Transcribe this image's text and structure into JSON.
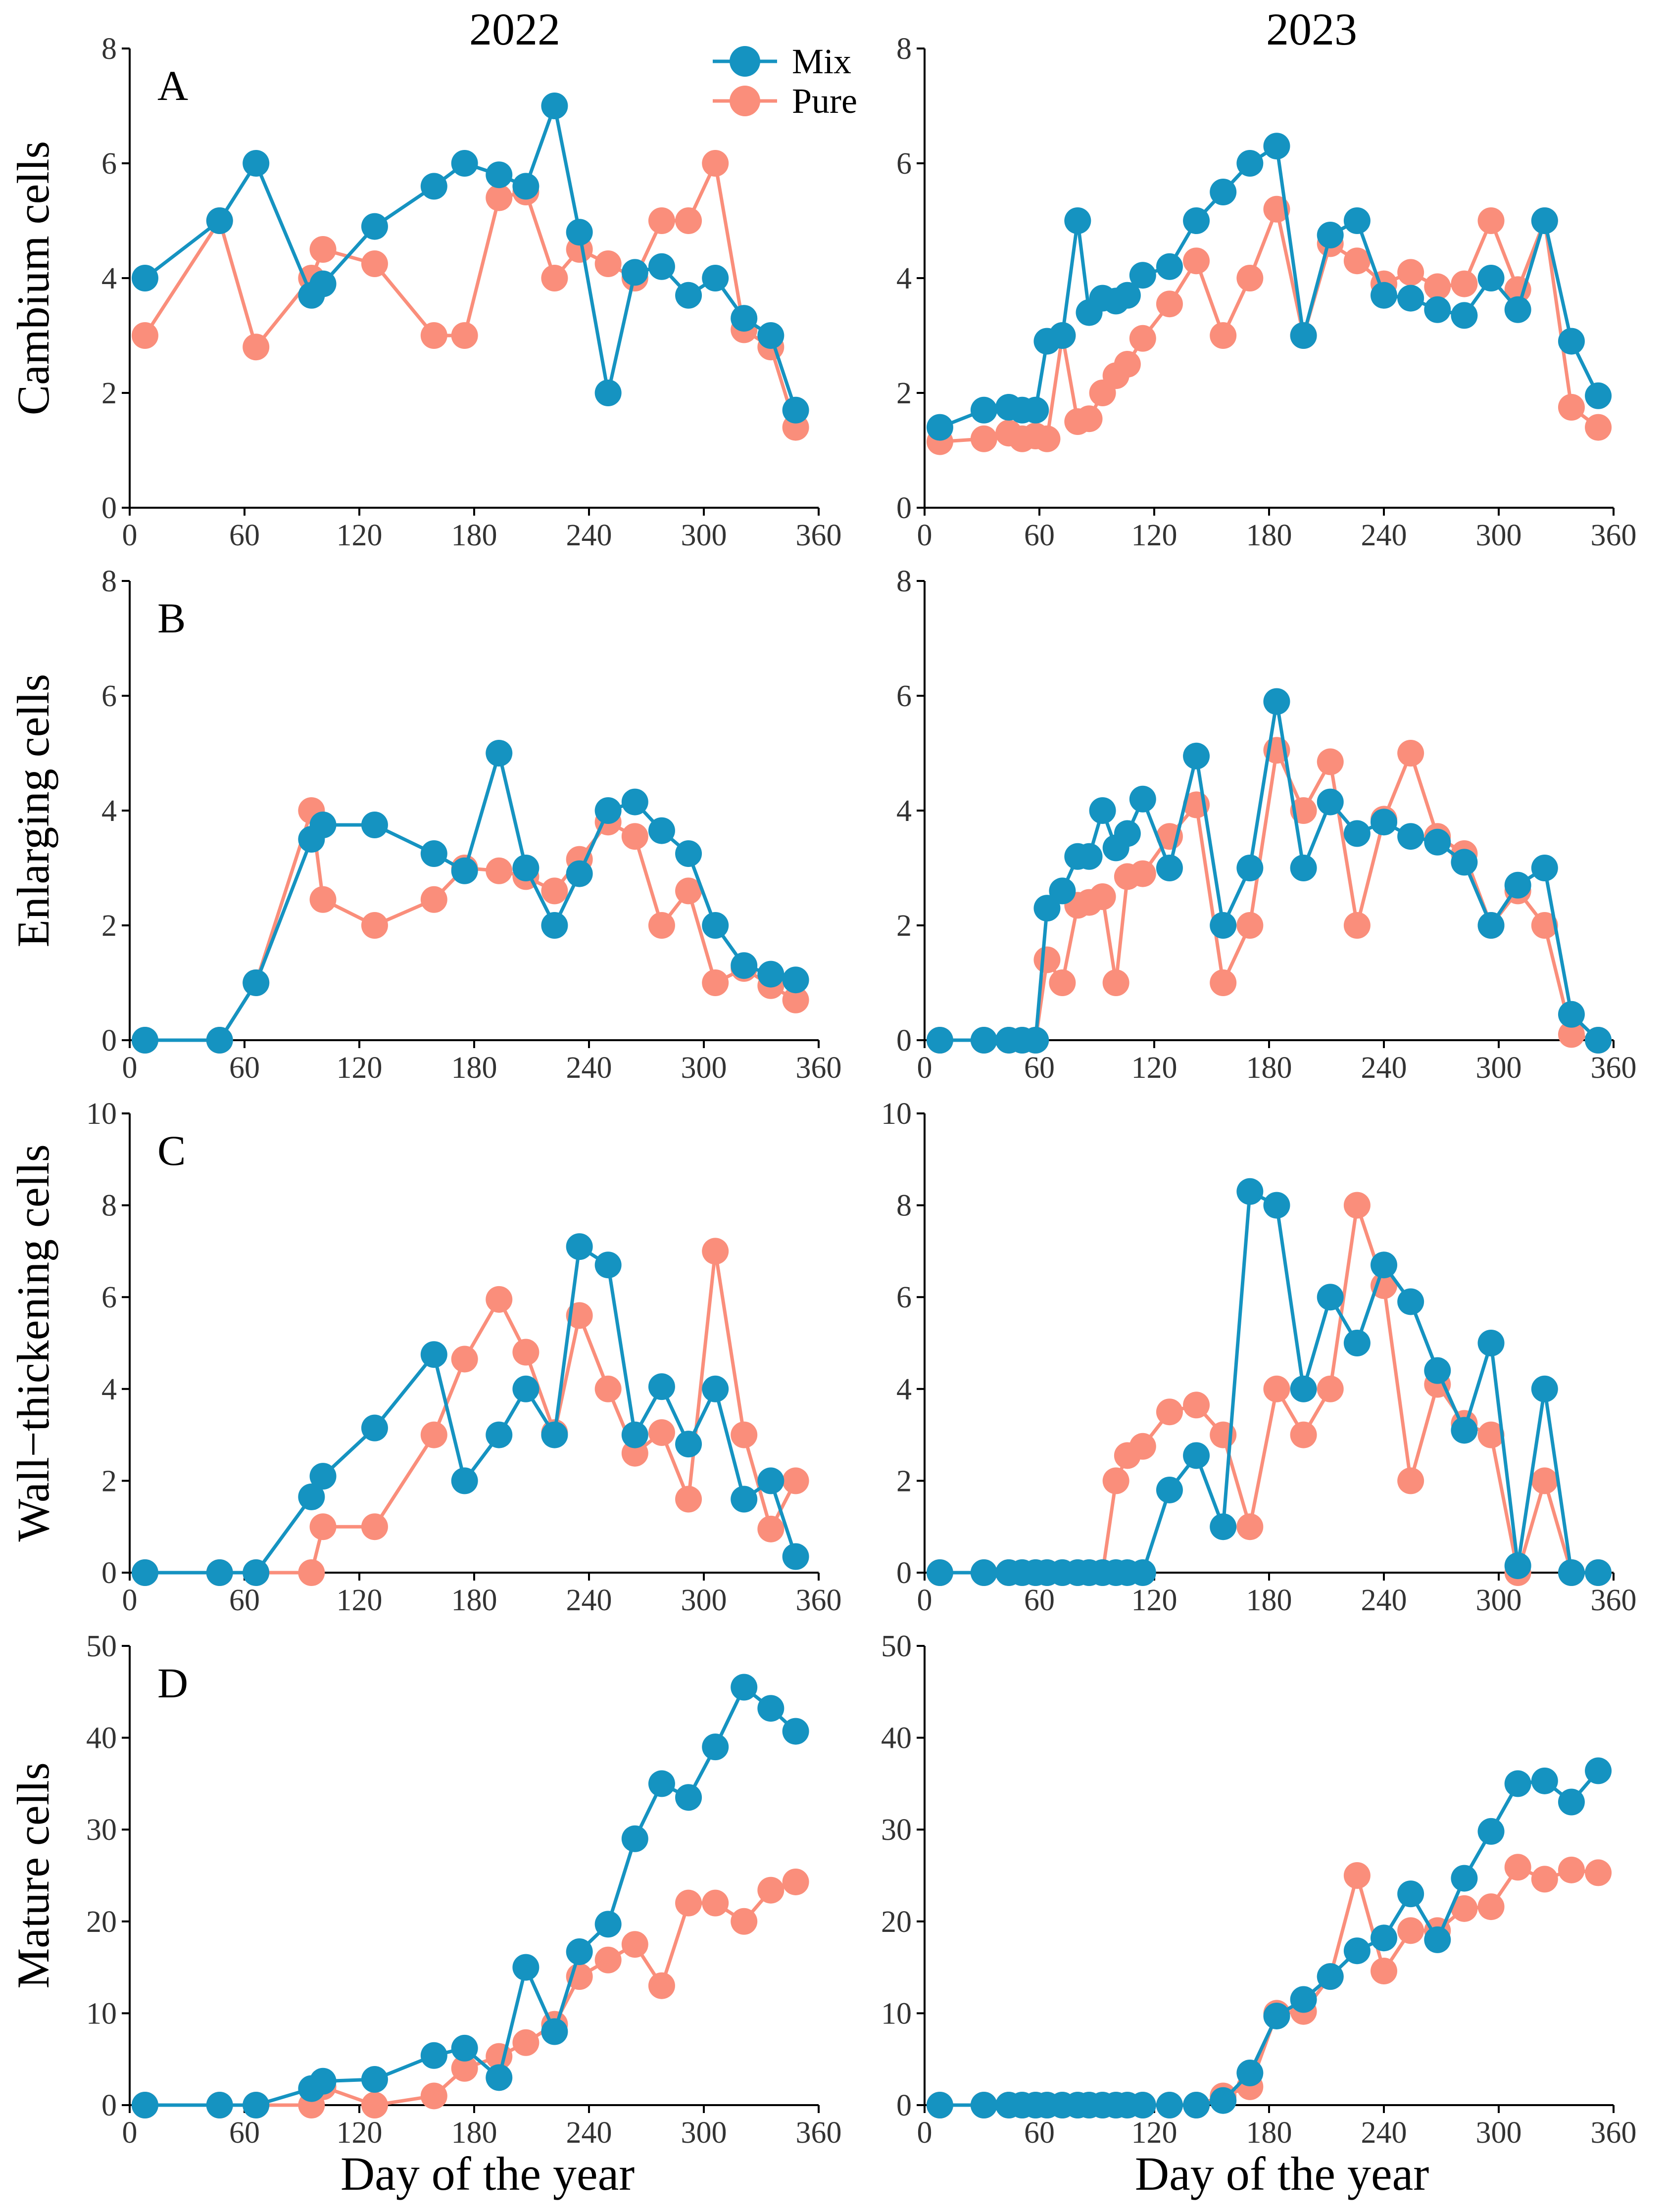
{
  "colors": {
    "Mix": "#1593c1",
    "Pure": "#fa8e7b"
  },
  "column_titles": [
    "2022",
    "2023"
  ],
  "panel_labels": [
    "A",
    "B",
    "C",
    "D"
  ],
  "legend": {
    "Mix": "Mix",
    "Pure": "Pure"
  },
  "x_axis_label": "Day of the year",
  "chart_data": [
    {
      "id": "A-2022",
      "type": "line",
      "title": "2022",
      "panel": "A",
      "xlabel": "",
      "ylabel": "Cambium cells",
      "xlim": [
        0,
        360
      ],
      "ylim": [
        0,
        8
      ],
      "xticks": [
        0,
        60,
        120,
        180,
        240,
        300,
        360
      ],
      "yticks": [
        0,
        2,
        4,
        6,
        8
      ],
      "series": [
        {
          "name": "Mix",
          "x": [
            8,
            47,
            66,
            95,
            101,
            128,
            159,
            175,
            193,
            207,
            222,
            235,
            250,
            264,
            278,
            292,
            306,
            321,
            335,
            348
          ],
          "y": [
            4.0,
            5.0,
            6.0,
            3.7,
            3.9,
            4.9,
            5.6,
            6.0,
            5.8,
            5.6,
            7.0,
            4.8,
            2.0,
            4.1,
            4.2,
            3.7,
            4.0,
            3.3,
            3.0,
            1.7
          ]
        },
        {
          "name": "Pure",
          "x": [
            8,
            47,
            66,
            95,
            101,
            128,
            159,
            175,
            193,
            207,
            222,
            235,
            250,
            264,
            278,
            292,
            306,
            321,
            335,
            348
          ],
          "y": [
            3.0,
            5.0,
            2.8,
            4.0,
            4.5,
            4.25,
            3.0,
            3.0,
            5.4,
            5.5,
            4.0,
            4.5,
            4.25,
            4.0,
            5.0,
            5.0,
            6.0,
            3.1,
            2.8,
            1.4
          ]
        }
      ]
    },
    {
      "id": "A-2023",
      "type": "line",
      "title": "2023",
      "panel": "A",
      "xlabel": "",
      "ylabel": "",
      "xlim": [
        0,
        360
      ],
      "ylim": [
        0,
        8
      ],
      "xticks": [
        0,
        60,
        120,
        180,
        240,
        300,
        360
      ],
      "yticks": [
        0,
        2,
        4,
        6,
        8
      ],
      "series": [
        {
          "name": "Mix",
          "x": [
            8,
            31,
            44,
            51,
            58,
            64,
            72,
            80,
            86,
            93,
            100,
            106,
            114,
            128,
            142,
            156,
            170,
            184,
            198,
            212,
            226,
            240,
            254,
            268,
            282,
            296,
            310,
            324,
            338,
            352
          ],
          "y": [
            1.4,
            1.7,
            1.75,
            1.7,
            1.7,
            2.9,
            3.0,
            5.0,
            3.4,
            3.65,
            3.6,
            3.7,
            4.05,
            4.2,
            5.0,
            5.5,
            6.0,
            6.3,
            3.0,
            4.75,
            5.0,
            3.7,
            3.65,
            3.45,
            3.35,
            4.0,
            3.45,
            5.0,
            2.9,
            1.95
          ]
        },
        {
          "name": "Pure",
          "x": [
            8,
            31,
            44,
            51,
            58,
            64,
            72,
            80,
            86,
            93,
            100,
            106,
            114,
            128,
            142,
            156,
            170,
            184,
            198,
            212,
            226,
            240,
            254,
            268,
            282,
            296,
            310,
            324,
            338,
            352
          ],
          "y": [
            1.15,
            1.2,
            1.3,
            1.2,
            1.25,
            1.2,
            3.0,
            1.5,
            1.55,
            2.0,
            2.3,
            2.5,
            2.95,
            3.55,
            4.3,
            3.0,
            4.0,
            5.2,
            3.0,
            4.6,
            4.3,
            3.9,
            4.1,
            3.85,
            3.9,
            5.0,
            3.8,
            5.0,
            1.75,
            1.4
          ]
        }
      ]
    },
    {
      "id": "B-2022",
      "type": "line",
      "title": "",
      "panel": "B",
      "xlabel": "",
      "ylabel": "Enlarging cells",
      "xlim": [
        0,
        360
      ],
      "ylim": [
        0,
        8
      ],
      "xticks": [
        0,
        60,
        120,
        180,
        240,
        300,
        360
      ],
      "yticks": [
        0,
        2,
        4,
        6,
        8
      ],
      "series": [
        {
          "name": "Mix",
          "x": [
            8,
            47,
            66,
            95,
            101,
            128,
            159,
            175,
            193,
            207,
            222,
            235,
            250,
            264,
            278,
            292,
            306,
            321,
            335,
            348
          ],
          "y": [
            0,
            0,
            1.0,
            3.5,
            3.75,
            3.75,
            3.25,
            2.95,
            5.0,
            3.0,
            2.0,
            2.9,
            4.0,
            4.15,
            3.65,
            3.25,
            2.0,
            1.3,
            1.15,
            1.05
          ]
        },
        {
          "name": "Pure",
          "x": [
            8,
            47,
            66,
            95,
            101,
            128,
            159,
            175,
            193,
            207,
            222,
            235,
            250,
            264,
            278,
            292,
            306,
            321,
            335,
            348
          ],
          "y": [
            0,
            0,
            1.0,
            4.0,
            2.45,
            2.0,
            2.45,
            3.0,
            2.95,
            2.85,
            2.6,
            3.15,
            3.8,
            3.55,
            2.0,
            2.6,
            1.0,
            1.25,
            0.95,
            0.7
          ]
        }
      ]
    },
    {
      "id": "B-2023",
      "type": "line",
      "title": "",
      "panel": "B",
      "xlabel": "",
      "ylabel": "",
      "xlim": [
        0,
        360
      ],
      "ylim": [
        0,
        8
      ],
      "xticks": [
        0,
        60,
        120,
        180,
        240,
        300,
        360
      ],
      "yticks": [
        0,
        2,
        4,
        6,
        8
      ],
      "series": [
        {
          "name": "Mix",
          "x": [
            8,
            31,
            44,
            51,
            58,
            64,
            72,
            80,
            86,
            93,
            100,
            106,
            114,
            128,
            142,
            156,
            170,
            184,
            198,
            212,
            226,
            240,
            254,
            268,
            282,
            296,
            310,
            324,
            338,
            352
          ],
          "y": [
            0,
            0,
            0,
            0,
            0,
            2.3,
            2.6,
            3.2,
            3.2,
            4.0,
            3.35,
            3.6,
            4.2,
            3.0,
            4.95,
            2.0,
            3.0,
            5.9,
            3.0,
            4.15,
            3.6,
            3.8,
            3.55,
            3.45,
            3.1,
            2.0,
            2.7,
            3.0,
            0.45,
            0
          ]
        },
        {
          "name": "Pure",
          "x": [
            8,
            31,
            44,
            51,
            58,
            64,
            72,
            80,
            86,
            93,
            100,
            106,
            114,
            128,
            142,
            156,
            170,
            184,
            198,
            212,
            226,
            240,
            254,
            268,
            282,
            296,
            310,
            324,
            338,
            352
          ],
          "y": [
            0,
            0,
            0,
            0,
            0,
            1.4,
            1.0,
            2.35,
            2.4,
            2.5,
            1.0,
            2.85,
            2.9,
            3.55,
            4.1,
            1.0,
            2.0,
            5.05,
            4.0,
            4.85,
            2.0,
            3.85,
            5.0,
            3.55,
            3.25,
            2.0,
            2.6,
            2.0,
            0.1,
            0
          ]
        }
      ]
    },
    {
      "id": "C-2022",
      "type": "line",
      "title": "",
      "panel": "C",
      "xlabel": "",
      "ylabel": "Wall−thickening cells",
      "xlim": [
        0,
        360
      ],
      "ylim": [
        0,
        10
      ],
      "xticks": [
        0,
        60,
        120,
        180,
        240,
        300,
        360
      ],
      "yticks": [
        0,
        2,
        4,
        6,
        8,
        10
      ],
      "series": [
        {
          "name": "Mix",
          "x": [
            8,
            47,
            66,
            95,
            101,
            128,
            159,
            175,
            193,
            207,
            222,
            235,
            250,
            264,
            278,
            292,
            306,
            321,
            335,
            348
          ],
          "y": [
            0,
            0,
            0,
            1.65,
            2.1,
            3.15,
            4.75,
            2.0,
            3.0,
            4.0,
            3.0,
            7.1,
            6.7,
            3.0,
            4.05,
            2.8,
            4.0,
            1.6,
            2.0,
            0.35
          ]
        },
        {
          "name": "Pure",
          "x": [
            8,
            47,
            66,
            95,
            101,
            128,
            159,
            175,
            193,
            207,
            222,
            235,
            250,
            264,
            278,
            292,
            306,
            321,
            335,
            348
          ],
          "y": [
            0,
            0,
            0,
            0,
            1.0,
            1.0,
            3.0,
            4.65,
            5.95,
            4.8,
            3.05,
            5.6,
            4.0,
            2.6,
            3.05,
            1.6,
            7.0,
            3.0,
            0.95,
            2.0
          ]
        }
      ]
    },
    {
      "id": "C-2023",
      "type": "line",
      "title": "",
      "panel": "C",
      "xlabel": "",
      "ylabel": "",
      "xlim": [
        0,
        360
      ],
      "ylim": [
        0,
        10
      ],
      "xticks": [
        0,
        60,
        120,
        180,
        240,
        300,
        360
      ],
      "yticks": [
        0,
        2,
        4,
        6,
        8,
        10
      ],
      "series": [
        {
          "name": "Mix",
          "x": [
            8,
            31,
            44,
            51,
            58,
            64,
            72,
            80,
            86,
            93,
            100,
            106,
            114,
            128,
            142,
            156,
            170,
            184,
            198,
            212,
            226,
            240,
            254,
            268,
            282,
            296,
            310,
            324,
            338,
            352
          ],
          "y": [
            0,
            0,
            0,
            0,
            0,
            0,
            0,
            0,
            0,
            0,
            0,
            0,
            0,
            1.8,
            2.55,
            1.0,
            8.3,
            8.0,
            4.0,
            6.0,
            5.0,
            6.7,
            5.9,
            4.4,
            3.1,
            5.0,
            0.15,
            4.0,
            0,
            0
          ]
        },
        {
          "name": "Pure",
          "x": [
            8,
            31,
            44,
            51,
            58,
            64,
            72,
            80,
            86,
            93,
            100,
            106,
            114,
            128,
            142,
            156,
            170,
            184,
            198,
            212,
            226,
            240,
            254,
            268,
            282,
            296,
            310,
            324,
            338,
            352
          ],
          "y": [
            0,
            0,
            0,
            0,
            0,
            0,
            0,
            0,
            0,
            0,
            2.0,
            2.55,
            2.75,
            3.5,
            3.65,
            3.0,
            1.0,
            4.0,
            3.0,
            4.0,
            8.0,
            6.25,
            2.0,
            4.1,
            3.25,
            3.0,
            0,
            2.0,
            0,
            0
          ]
        }
      ]
    },
    {
      "id": "D-2022",
      "type": "line",
      "title": "",
      "panel": "D",
      "xlabel": "Day of the year",
      "ylabel": "Mature cells",
      "xlim": [
        0,
        360
      ],
      "ylim": [
        0,
        50
      ],
      "xticks": [
        0,
        60,
        120,
        180,
        240,
        300,
        360
      ],
      "yticks": [
        0,
        10,
        20,
        30,
        40,
        50
      ],
      "series": [
        {
          "name": "Mix",
          "x": [
            8,
            47,
            66,
            95,
            101,
            128,
            159,
            175,
            193,
            207,
            222,
            235,
            250,
            264,
            278,
            292,
            306,
            321,
            335,
            348
          ],
          "y": [
            0,
            0,
            0,
            1.8,
            2.6,
            2.8,
            5.4,
            6.2,
            3.0,
            15.0,
            8.0,
            16.7,
            19.7,
            29.0,
            35.0,
            33.5,
            39.0,
            45.5,
            43.2,
            40.7
          ]
        },
        {
          "name": "Pure",
          "x": [
            8,
            47,
            66,
            95,
            101,
            128,
            159,
            175,
            193,
            207,
            222,
            235,
            250,
            264,
            278,
            292,
            306,
            321,
            335,
            348
          ],
          "y": [
            0,
            0,
            0,
            0,
            2.0,
            0,
            1.0,
            4.0,
            5.3,
            6.8,
            8.8,
            14.0,
            15.8,
            17.5,
            13.0,
            22.0,
            22.0,
            20.0,
            23.4,
            24.3
          ]
        }
      ]
    },
    {
      "id": "D-2023",
      "type": "line",
      "title": "",
      "panel": "D",
      "xlabel": "Day of the year",
      "ylabel": "",
      "xlim": [
        0,
        360
      ],
      "ylim": [
        0,
        50
      ],
      "xticks": [
        0,
        60,
        120,
        180,
        240,
        300,
        360
      ],
      "yticks": [
        0,
        10,
        20,
        30,
        40,
        50
      ],
      "series": [
        {
          "name": "Mix",
          "x": [
            8,
            31,
            44,
            51,
            58,
            64,
            72,
            80,
            86,
            93,
            100,
            106,
            114,
            128,
            142,
            156,
            170,
            184,
            198,
            212,
            226,
            240,
            254,
            268,
            282,
            296,
            310,
            324,
            338,
            352
          ],
          "y": [
            0,
            0,
            0,
            0,
            0,
            0,
            0,
            0,
            0,
            0,
            0,
            0,
            0,
            0,
            0,
            0.5,
            3.5,
            9.7,
            11.5,
            14.0,
            16.8,
            18.2,
            23.0,
            18.0,
            24.7,
            29.8,
            35.0,
            35.3,
            33.0,
            36.4
          ]
        },
        {
          "name": "Pure",
          "x": [
            8,
            31,
            44,
            51,
            58,
            64,
            72,
            80,
            86,
            93,
            100,
            106,
            114,
            128,
            142,
            156,
            170,
            184,
            198,
            212,
            226,
            240,
            254,
            268,
            282,
            296,
            310,
            324,
            338,
            352
          ],
          "y": [
            0,
            0,
            0,
            0,
            0,
            0,
            0,
            0,
            0,
            0,
            0,
            0,
            0,
            0,
            0,
            1.0,
            2.0,
            10.0,
            10.2,
            14.0,
            25.0,
            14.6,
            19.0,
            19.0,
            21.4,
            21.6,
            25.9,
            24.6,
            25.6,
            25.3
          ]
        }
      ]
    }
  ]
}
